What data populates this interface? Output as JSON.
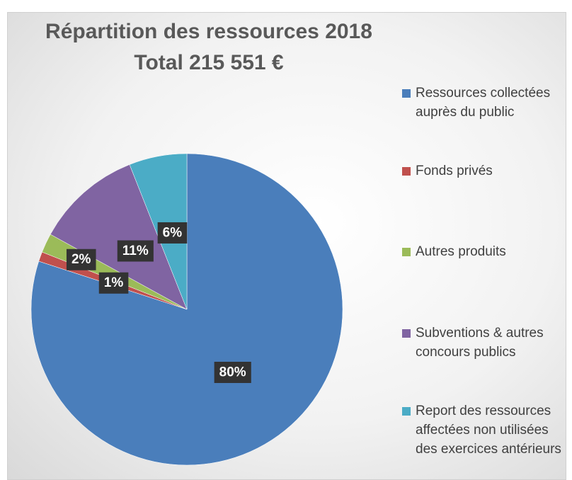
{
  "chart_data": {
    "type": "pie",
    "title": "Répartition des ressources 2018",
    "subtitle": "Total 215 551 €",
    "categories": [
      "Ressources collectées auprès du public",
      "Fonds privés",
      "Autres produits",
      "Subventions & autres concours publics",
      "Report des ressources affectées non utilisées des exercices antérieurs"
    ],
    "values": [
      80,
      1,
      2,
      11,
      6
    ],
    "value_labels": [
      "80%",
      "1%",
      "2%",
      "11%",
      "6%"
    ],
    "colors": [
      "#4a7ebb",
      "#c0504d",
      "#9bbb59",
      "#8064a2",
      "#4bacc6"
    ],
    "legend": "right"
  }
}
